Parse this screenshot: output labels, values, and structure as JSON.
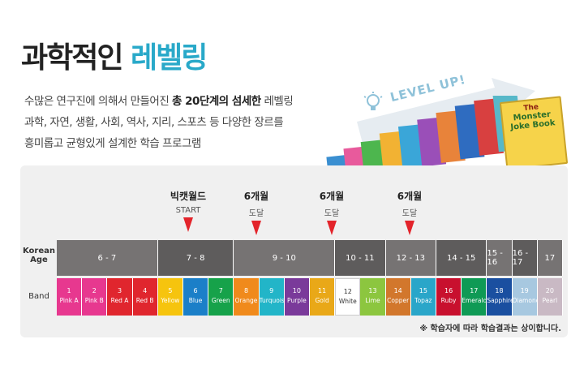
{
  "heading": {
    "plain": "과학적인",
    "accent": "레벨링"
  },
  "description": {
    "line1_pre": "수많은 연구진에 의해서 만들어진 ",
    "line1_bold": "총 20단계의 섬세한",
    "line1_post": " 레벨링",
    "line2": "과학, 자연, 생활, 사회, 역사, 지리, 스포츠 등 다양한 장르를",
    "line3": "흥미롭고 균형있게 설계한 학습 프로그램"
  },
  "level_up": "LEVEL UP!",
  "book_cover": {
    "line1": "The",
    "line2": "Monster",
    "line3": "Joke Book"
  },
  "markers": [
    {
      "title": "빅캣월드",
      "sub": "START"
    },
    {
      "title": "6개월",
      "sub": "도달"
    },
    {
      "title": "6개월",
      "sub": "도달"
    },
    {
      "title": "6개월",
      "sub": "도달"
    }
  ],
  "labels": {
    "age_line1": "Korean",
    "age_line2": "Age",
    "band": "Band"
  },
  "age_groups": [
    "6 - 7",
    "7 - 8",
    "9 - 10",
    "10 - 11",
    "12 - 13",
    "14 - 15",
    "15 - 16",
    "16 - 17",
    "17"
  ],
  "bands": [
    {
      "num": "1",
      "name": "Pink A",
      "color": "#e7388f"
    },
    {
      "num": "2",
      "name": "Pink B",
      "color": "#e7388f"
    },
    {
      "num": "3",
      "name": "Red A",
      "color": "#e0262e"
    },
    {
      "num": "4",
      "name": "Red B",
      "color": "#e0262e"
    },
    {
      "num": "5",
      "name": "Yellow",
      "color": "#f6c40e"
    },
    {
      "num": "6",
      "name": "Blue",
      "color": "#1b7fc8"
    },
    {
      "num": "7",
      "name": "Green",
      "color": "#16a24a"
    },
    {
      "num": "8",
      "name": "Orange",
      "color": "#f08a1c"
    },
    {
      "num": "9",
      "name": "Turquoise",
      "color": "#22b5c8"
    },
    {
      "num": "10",
      "name": "Purple",
      "color": "#7a3a9a"
    },
    {
      "num": "11",
      "name": "Gold",
      "color": "#e9a818"
    },
    {
      "num": "12",
      "name": "White",
      "color": "#ffffff"
    },
    {
      "num": "13",
      "name": "Lime",
      "color": "#8cc63f"
    },
    {
      "num": "14",
      "name": "Copper",
      "color": "#d2772c"
    },
    {
      "num": "15",
      "name": "Topaz",
      "color": "#2aa6c9"
    },
    {
      "num": "16",
      "name": "Ruby",
      "color": "#c8102e"
    },
    {
      "num": "17",
      "name": "Emerald",
      "color": "#0f9a55"
    },
    {
      "num": "18",
      "name": "Sapphire",
      "color": "#1a4fa0"
    },
    {
      "num": "19",
      "name": "Diamond",
      "color": "#a7c8e0"
    },
    {
      "num": "20",
      "name": "Pearl",
      "color": "#c9b9c4"
    }
  ],
  "colors": {
    "age_dark": "#5e5c5c",
    "age_mid": "#767373",
    "accent": "#29a9c9",
    "marker": "#e3242b"
  },
  "note": "※ 학습자에 따라 학습결과는 상이합니다."
}
